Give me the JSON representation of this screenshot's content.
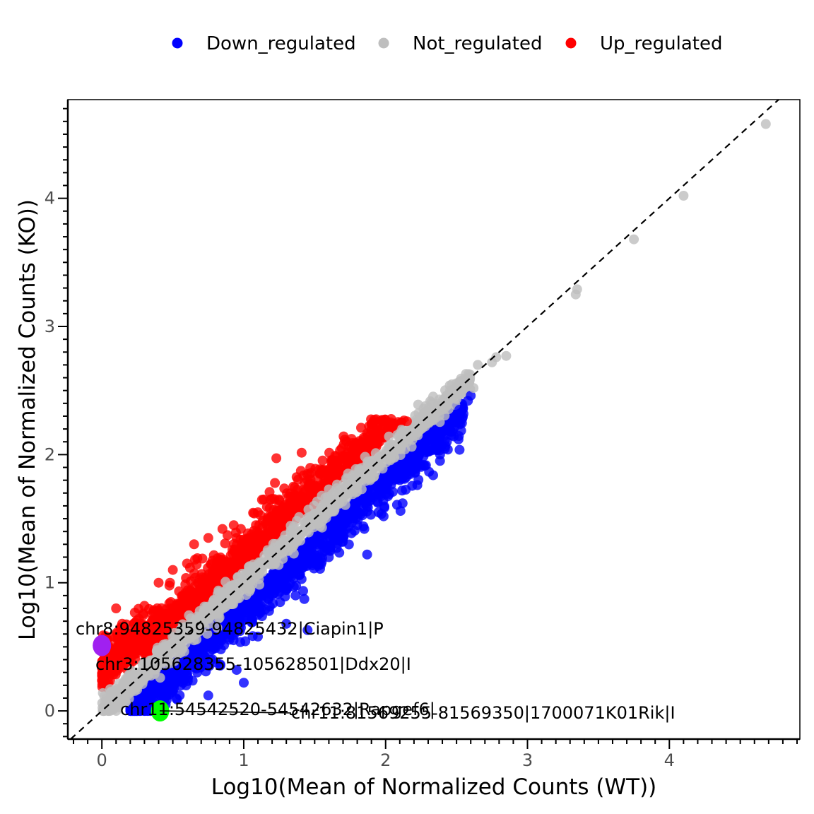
{
  "chart_data": {
    "type": "scatter",
    "xlabel": "Log10(Mean of Normalized Counts (WT))",
    "ylabel": "Log10(Mean of Normalized Counts (KO))",
    "xlim": [
      -0.24,
      4.92
    ],
    "ylim": [
      -0.22,
      4.77
    ],
    "x_ticks": [
      0,
      1,
      2,
      3,
      4
    ],
    "y_ticks": [
      0,
      1,
      2,
      3,
      4
    ],
    "legend_position": "top",
    "diagonal": {
      "style": "dashed",
      "slope": 1,
      "intercept": 0
    },
    "series": [
      {
        "name": "Down_regulated",
        "color": "#0000ff",
        "points": [
          [
            0.5,
            0.3
          ],
          [
            0.7,
            0.45
          ],
          [
            0.9,
            0.6
          ],
          [
            1.1,
            0.75
          ],
          [
            1.3,
            0.95
          ],
          [
            1.5,
            1.15
          ],
          [
            1.6,
            1.2
          ],
          [
            1.7,
            1.35
          ],
          [
            1.8,
            1.45
          ],
          [
            1.85,
            1.42
          ],
          [
            1.87,
            1.22
          ],
          [
            1.95,
            1.55
          ],
          [
            2.1,
            1.8
          ],
          [
            2.12,
            1.62
          ],
          [
            2.2,
            1.9
          ],
          [
            2.35,
            2.05
          ],
          [
            2.45,
            2.18
          ],
          [
            2.5,
            2.25
          ],
          [
            2.52,
            2.35
          ],
          [
            2.58,
            2.42
          ],
          [
            2.6,
            2.46
          ],
          [
            0.95,
            0.32
          ],
          [
            1.1,
            0.58
          ],
          [
            1.3,
            0.68
          ],
          [
            1.45,
            0.63
          ],
          [
            1.0,
            0.22
          ],
          [
            0.75,
            0.12
          ],
          [
            0.3,
            0.0
          ],
          [
            0.45,
            0.05
          ]
        ]
      },
      {
        "name": "Not_regulated",
        "color": "#bebebe",
        "points": [
          [
            0.1,
            0.1
          ],
          [
            0.5,
            0.5
          ],
          [
            1.0,
            1.0
          ],
          [
            1.5,
            1.5
          ],
          [
            2.0,
            2.0
          ],
          [
            2.3,
            2.3
          ],
          [
            2.55,
            2.55
          ],
          [
            2.62,
            2.52
          ],
          [
            2.65,
            2.7
          ],
          [
            2.75,
            2.72
          ],
          [
            2.78,
            2.76
          ],
          [
            2.85,
            2.77
          ],
          [
            3.34,
            3.25
          ],
          [
            3.35,
            3.29
          ],
          [
            3.75,
            3.68
          ],
          [
            4.1,
            4.02
          ],
          [
            4.68,
            4.58
          ]
        ]
      },
      {
        "name": "Up_regulated",
        "color": "#ff0000",
        "points": [
          [
            0.05,
            0.35
          ],
          [
            0.1,
            0.8
          ],
          [
            0.3,
            0.82
          ],
          [
            0.4,
            1.0
          ],
          [
            0.5,
            1.1
          ],
          [
            0.6,
            1.15
          ],
          [
            0.75,
            1.35
          ],
          [
            0.85,
            1.42
          ],
          [
            0.98,
            1.42
          ],
          [
            1.1,
            1.55
          ],
          [
            1.25,
            1.65
          ],
          [
            1.45,
            1.8
          ],
          [
            1.55,
            1.88
          ],
          [
            1.7,
            1.95
          ],
          [
            1.85,
            2.1
          ],
          [
            1.95,
            2.18
          ],
          [
            2.05,
            2.22
          ],
          [
            2.15,
            2.26
          ],
          [
            1.35,
            1.75
          ],
          [
            0.95,
            1.35
          ],
          [
            0.65,
            1.3
          ],
          [
            0.48,
            1.0
          ]
        ]
      }
    ],
    "highlights": [
      {
        "x": 0.0,
        "y": 0.51,
        "color": "#a020f0"
      },
      {
        "x": 0.41,
        "y": 0.0,
        "color": "#00ff00"
      }
    ],
    "annotations": [
      "chr8:94825359-94825432|Ciapin1|P",
      "chr3:105628355-105628501|Ddx20|I",
      "chr11:54542520-54542632|Rapgef6|",
      "chr11:81569255-81569350|1700071K01Rik|I"
    ]
  }
}
